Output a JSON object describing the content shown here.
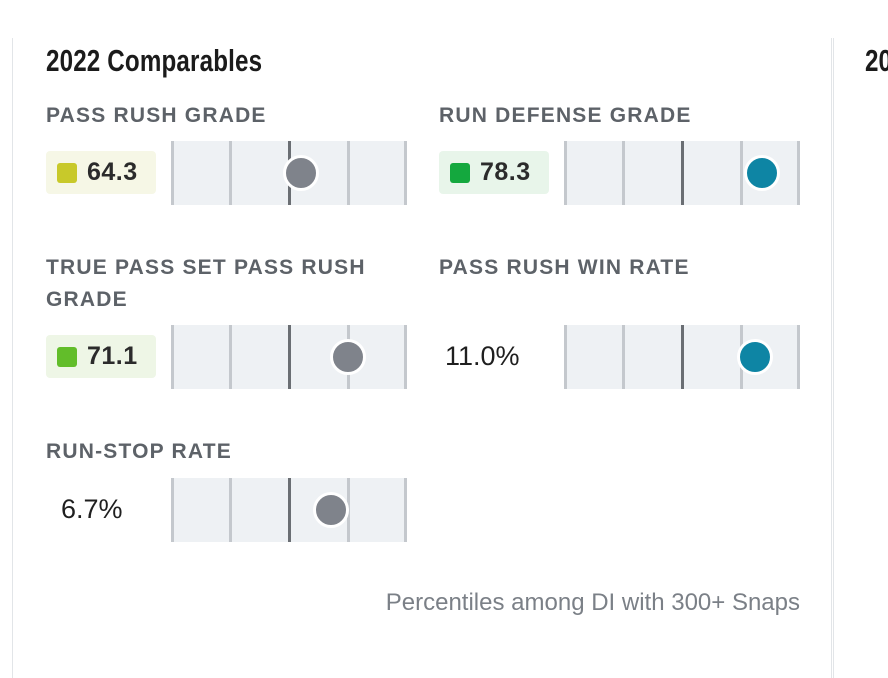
{
  "card": {
    "title": "2022 Comparables",
    "footnote": "Percentiles among DI with 300+ Snaps"
  },
  "next_card": {
    "title_fragment": "20"
  },
  "colors": {
    "badge_yellow_bg": "#f6f7e6",
    "swatch_yellow": "#c8c92a",
    "badge_green_bg": "#e8f5ea",
    "swatch_green": "#14a83e",
    "badge_lightgreen_bg": "#eef6e6",
    "swatch_lightgreen": "#62bd2a",
    "dot_gray": "#7f838b",
    "dot_teal": "#0e85a4",
    "bar_bg": "#eef1f4",
    "tick_light": "#c4c8cd",
    "tick_mid": "#6a6e73"
  },
  "metrics": [
    {
      "key": "pass_rush_grade",
      "label": "PASS RUSH GRADE",
      "value": "64.3",
      "display": "badge",
      "badge_color": "yellow",
      "percentile": 55,
      "dot_color": "gray"
    },
    {
      "key": "run_defense_grade",
      "label": "RUN DEFENSE GRADE",
      "value": "78.3",
      "display": "badge",
      "badge_color": "green",
      "percentile": 84,
      "dot_color": "teal"
    },
    {
      "key": "true_pass_set_pass_rush_grade",
      "label": "TRUE PASS SET PASS RUSH GRADE",
      "value": "71.1",
      "display": "badge",
      "badge_color": "lightgreen",
      "percentile": 75,
      "dot_color": "gray"
    },
    {
      "key": "pass_rush_win_rate",
      "label": "PASS RUSH WIN RATE",
      "value": "11.0%",
      "display": "plain",
      "percentile": 81,
      "dot_color": "teal"
    },
    {
      "key": "run_stop_rate",
      "label": "RUN-STOP RATE",
      "value": "6.7%",
      "display": "plain",
      "percentile": 68,
      "dot_color": "gray"
    }
  ]
}
